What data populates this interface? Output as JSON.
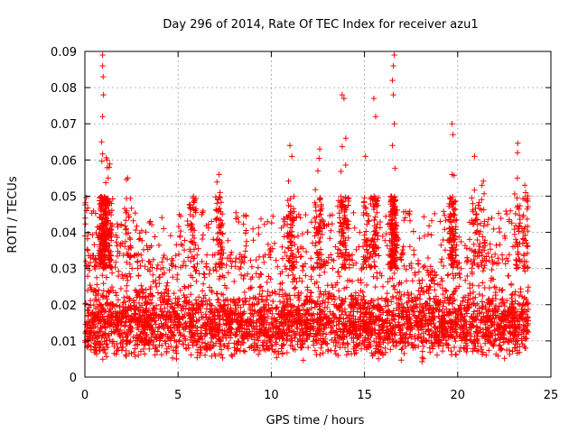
{
  "chart_data": {
    "type": "scatter",
    "title": "Day 296 of 2014, Rate Of TEC Index for receiver azu1",
    "xlabel": "GPS time / hours",
    "ylabel": "ROTI / TECUs",
    "xlim": [
      0,
      25
    ],
    "ylim": [
      0,
      0.09
    ],
    "x_ticks": [
      0,
      5,
      10,
      15,
      20,
      25
    ],
    "x_tick_labels": [
      "0",
      "5",
      "10",
      "15",
      "20",
      "25"
    ],
    "y_ticks": [
      0,
      0.01,
      0.02,
      0.03,
      0.04,
      0.05,
      0.06,
      0.07,
      0.08,
      0.09
    ],
    "y_tick_labels": [
      "0",
      "0.01",
      "0.02",
      "0.03",
      "0.04",
      "0.05",
      "0.06",
      "0.07",
      "0.08",
      "0.09"
    ],
    "grid": true,
    "marker": "+",
    "color": "#ff0000",
    "series": [
      {
        "name": "ROTI azu1",
        "x_range": [
          0,
          23.8
        ],
        "typical_range": [
          0.006,
          0.03
        ],
        "dense_band_center": 0.015,
        "notable_points": [
          {
            "x": 0.0,
            "y": 0.039
          },
          {
            "x": 0.95,
            "y": 0.089
          },
          {
            "x": 0.95,
            "y": 0.086
          },
          {
            "x": 0.98,
            "y": 0.083
          },
          {
            "x": 1.0,
            "y": 0.078
          },
          {
            "x": 0.95,
            "y": 0.072
          },
          {
            "x": 0.9,
            "y": 0.065
          },
          {
            "x": 1.2,
            "y": 0.06
          },
          {
            "x": 1.3,
            "y": 0.058
          },
          {
            "x": 1.25,
            "y": 0.055
          },
          {
            "x": 2.3,
            "y": 0.055
          },
          {
            "x": 5.8,
            "y": 0.047
          },
          {
            "x": 7.2,
            "y": 0.056
          },
          {
            "x": 7.25,
            "y": 0.051
          },
          {
            "x": 11.0,
            "y": 0.064
          },
          {
            "x": 11.1,
            "y": 0.061
          },
          {
            "x": 12.6,
            "y": 0.063
          },
          {
            "x": 12.5,
            "y": 0.057
          },
          {
            "x": 13.8,
            "y": 0.078
          },
          {
            "x": 13.9,
            "y": 0.077
          },
          {
            "x": 14.0,
            "y": 0.066
          },
          {
            "x": 15.5,
            "y": 0.077
          },
          {
            "x": 15.6,
            "y": 0.072
          },
          {
            "x": 16.6,
            "y": 0.089
          },
          {
            "x": 16.55,
            "y": 0.086
          },
          {
            "x": 16.5,
            "y": 0.082
          },
          {
            "x": 16.55,
            "y": 0.078
          },
          {
            "x": 16.6,
            "y": 0.07
          },
          {
            "x": 16.5,
            "y": 0.064
          },
          {
            "x": 15.05,
            "y": 0.061
          },
          {
            "x": 19.7,
            "y": 0.07
          },
          {
            "x": 19.75,
            "y": 0.067
          },
          {
            "x": 19.7,
            "y": 0.056
          },
          {
            "x": 20.9,
            "y": 0.061
          },
          {
            "x": 21.3,
            "y": 0.053
          },
          {
            "x": 23.2,
            "y": 0.055
          },
          {
            "x": 23.6,
            "y": 0.053
          }
        ]
      }
    ]
  }
}
